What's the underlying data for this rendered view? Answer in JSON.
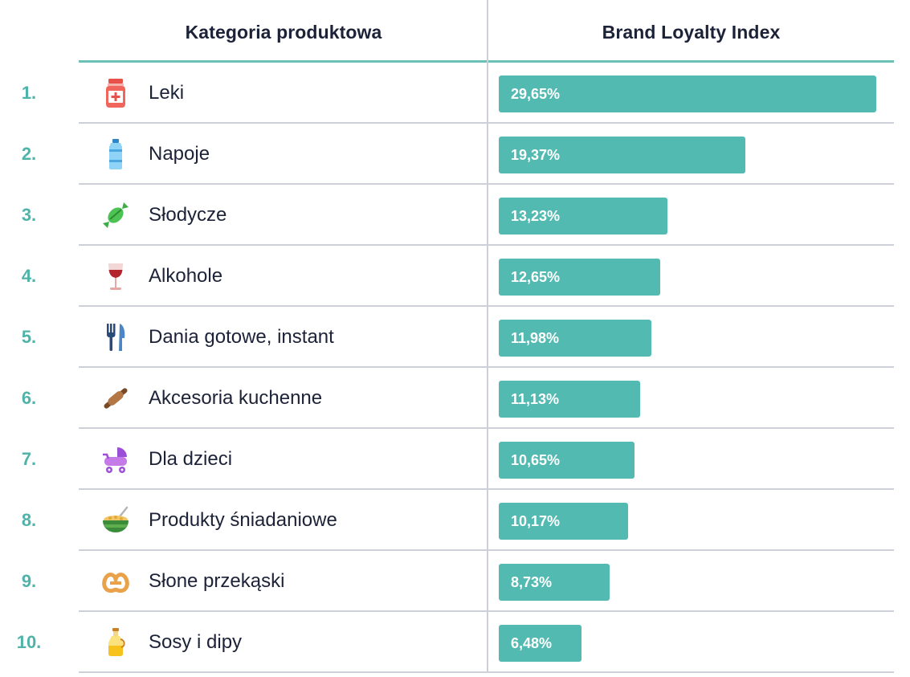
{
  "header": {
    "category": "Kategoria produktowa",
    "value": "Brand Loyalty Index"
  },
  "chart_data": {
    "type": "bar",
    "orientation": "horizontal",
    "xlabel": "Kategoria produktowa",
    "ylabel": "Brand Loyalty Index",
    "xlim": [
      0,
      29.65
    ],
    "bar_color": "#53bab2",
    "accent_color": "#4fb3a9",
    "rows": [
      {
        "rank": "1.",
        "category": "Leki",
        "value": 29.65,
        "value_label": "29,65%",
        "icon": "medicine-bottle-icon"
      },
      {
        "rank": "2.",
        "category": "Napoje",
        "value": 19.37,
        "value_label": "19,37%",
        "icon": "water-bottle-icon"
      },
      {
        "rank": "3.",
        "category": "Słodycze",
        "value": 13.23,
        "value_label": "13,23%",
        "icon": "candy-icon"
      },
      {
        "rank": "4.",
        "category": "Alkohole",
        "value": 12.65,
        "value_label": "12,65%",
        "icon": "wine-glass-icon"
      },
      {
        "rank": "5.",
        "category": "Dania gotowe, instant",
        "value": 11.98,
        "value_label": "11,98%",
        "icon": "fork-knife-icon"
      },
      {
        "rank": "6.",
        "category": "Akcesoria kuchenne",
        "value": 11.13,
        "value_label": "11,13%",
        "icon": "rolling-pin-icon"
      },
      {
        "rank": "7.",
        "category": "Dla dzieci",
        "value": 10.65,
        "value_label": "10,65%",
        "icon": "baby-stroller-icon"
      },
      {
        "rank": "8.",
        "category": "Produkty śniadaniowe",
        "value": 10.17,
        "value_label": "10,17%",
        "icon": "cereal-bowl-icon"
      },
      {
        "rank": "9.",
        "category": "Słone przekąski",
        "value": 8.73,
        "value_label": "8,73%",
        "icon": "pretzel-icon"
      },
      {
        "rank": "10.",
        "category": "Sosy i dipy",
        "value": 6.48,
        "value_label": "6,48%",
        "icon": "sauce-bottle-icon"
      }
    ]
  }
}
